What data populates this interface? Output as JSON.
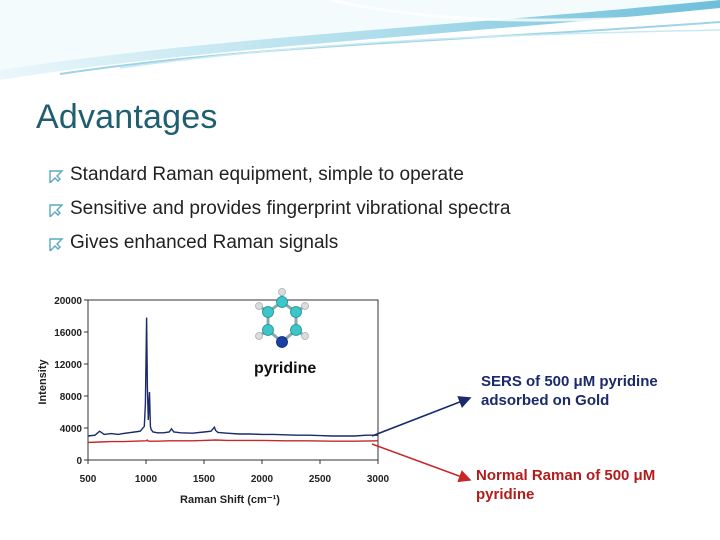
{
  "slide": {
    "title": "Advantages",
    "bullets": [
      "Standard Raman equipment, simple to operate",
      "Sensitive and provides fingerprint vibrational spectra",
      "Gives enhanced Raman signals"
    ],
    "molecule_label": "pyridine",
    "sers_label": [
      "SERS of 500 μM pyridine",
      "adsorbed on Gold"
    ],
    "normal_label": [
      "Normal Raman of 500 μM",
      "pyridine"
    ],
    "colors": {
      "title": "#1f5f70",
      "sers": "#1b2a6b",
      "normal": "#b21c1c",
      "header_wave": "#7fc6dc"
    }
  },
  "chart_data": {
    "type": "line",
    "xlabel": "Raman Shift (cm⁻¹)",
    "ylabel": "Intensity",
    "xlim": [
      500,
      3000
    ],
    "ylim": [
      0,
      20000
    ],
    "xticks": [
      500,
      1000,
      1500,
      2000,
      2500,
      3000
    ],
    "yticks": [
      0,
      4000,
      8000,
      12000,
      16000,
      20000
    ],
    "series": [
      {
        "color": "#1b2a6b",
        "x": [
          500,
          560,
          600,
          640,
          700,
          760,
          800,
          850,
          900,
          950,
          985,
          995,
          1005,
          1012,
          1020,
          1030,
          1038,
          1045,
          1060,
          1100,
          1150,
          1200,
          1220,
          1240,
          1300,
          1400,
          1500,
          1560,
          1590,
          1600,
          1620,
          1700,
          1800,
          1900,
          2000,
          2100,
          2200,
          2300,
          2400,
          2500,
          2600,
          2700,
          2800,
          2900,
          3000
        ],
        "values": [
          3000,
          3100,
          3600,
          3200,
          3300,
          3200,
          3300,
          3400,
          3500,
          3600,
          4200,
          7000,
          17800,
          9000,
          5000,
          8500,
          4200,
          3800,
          3500,
          3400,
          3400,
          3500,
          3900,
          3500,
          3400,
          3350,
          3500,
          3600,
          4100,
          3700,
          3450,
          3350,
          3250,
          3250,
          3200,
          3200,
          3150,
          3100,
          3100,
          3050,
          3000,
          3000,
          3000,
          3100,
          3100
        ]
      },
      {
        "color": "#c62828",
        "x": [
          500,
          600,
          700,
          800,
          900,
          1000,
          1010,
          1020,
          1100,
          1200,
          1300,
          1400,
          1500,
          1600,
          1700,
          1800,
          1900,
          2000,
          2200,
          2400,
          2600,
          2800,
          3000
        ],
        "values": [
          2200,
          2250,
          2300,
          2300,
          2350,
          2400,
          2500,
          2350,
          2350,
          2400,
          2400,
          2400,
          2450,
          2500,
          2450,
          2450,
          2450,
          2450,
          2400,
          2400,
          2350,
          2350,
          2400
        ]
      }
    ]
  }
}
